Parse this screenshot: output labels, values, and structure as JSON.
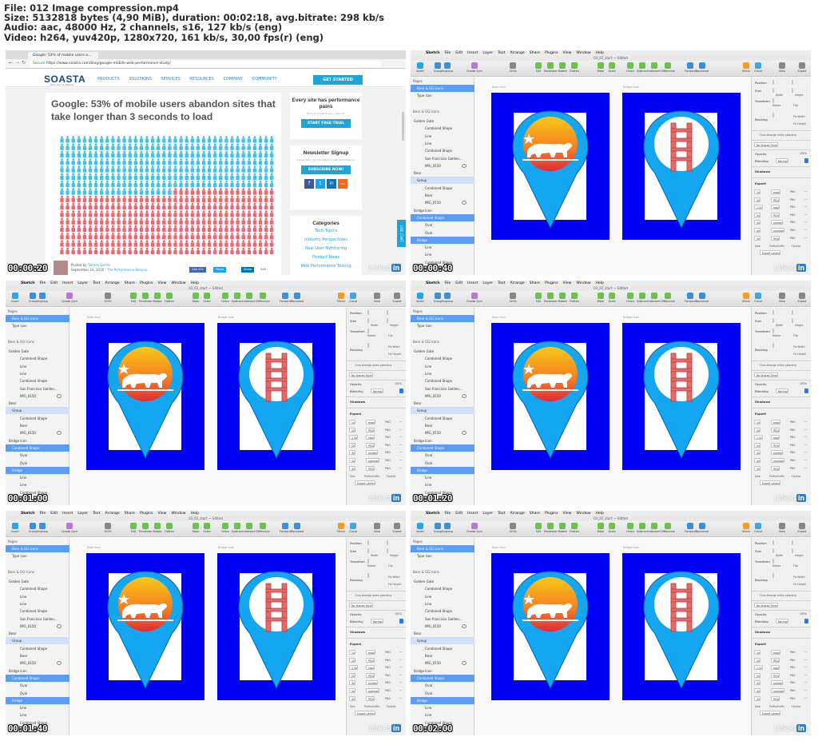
{
  "header": {
    "file": "File: 012 Image compression.mp4",
    "size": "Size: 5132818 bytes (4,90 MiB), duration: 00:02:18, avg.bitrate: 298 kb/s",
    "audio": "Audio: aac, 48000 Hz, 2 channels, s16, 127 kb/s (eng)",
    "video": "Video: h264, yuv420p, 1280x720, 161 kb/s, 30,00 fps(r) (eng)"
  },
  "timestamps": [
    "00:00:20",
    "00:00:40",
    "00:01:00",
    "00:01:20",
    "00:01:40",
    "00:02:00"
  ],
  "watermark": {
    "text": "Linked",
    "badge": "in"
  },
  "browser": {
    "tab_title": "Google: 53% of mobile users a...",
    "url_secure": "Secure",
    "url": "https://www.soasta.com/blog/google-mobile-web-performance-study/",
    "logo": "SOASTA",
    "logo_sub": "Now part of Akamai",
    "nav": [
      "PRODUCTS",
      "SOLUTIONS",
      "SERVICES",
      "RESOURCES",
      "COMPANY",
      "COMMUNITY"
    ],
    "cta": "GET STARTED",
    "title": "Google: 53% of mobile users abandon sites that take longer than 3 seconds to load",
    "posted_by": "Posted by",
    "author": "Tammy Everts",
    "date": "September 14, 2016 · ",
    "category_link": "The Performance Beacon",
    "share_buttons": [
      "Like 422",
      "Tweet",
      "Share",
      "448"
    ],
    "sidebar": {
      "perf_title": "Every site has performance pains",
      "perf_text": "Find yours before your users do.",
      "perf_button": "START FREE TRIAL",
      "news_title": "Newsletter Signup",
      "news_text": "Subscribe to get the latest on web performance.",
      "news_button": "SUBSCRIBE NOW!",
      "social": [
        "f",
        "t",
        "in",
        "rss"
      ],
      "cat_title": "Categories",
      "categories": [
        "Tech Topics",
        "Industry Perspectives",
        "Real User Monitoring",
        "Product News",
        "Web Performance Testing"
      ]
    },
    "live_chat": "LIVE CHAT",
    "colors": {
      "blue_people": "#41c3e8",
      "red_people": "#f06670",
      "accent": "#1ba5d8"
    }
  },
  "sketch": {
    "menu": [
      "Sketch",
      "File",
      "Edit",
      "Insert",
      "Layer",
      "Text",
      "Arrange",
      "Share",
      "Plugins",
      "View",
      "Window",
      "Help"
    ],
    "doc_title": "03_02_start — Edited",
    "toolbar": [
      "Insert",
      "Group",
      "Ungroup",
      "Create Symbol",
      "100%",
      "Edit",
      "Transform",
      "Rotate",
      "Flatten",
      "Mask",
      "Scale",
      "Union",
      "Subtract",
      "Intersect",
      "Difference",
      "Forward",
      "Backward",
      "Mirror",
      "Cloud",
      "View",
      "Export"
    ],
    "pages_label": "Pages",
    "pages": [
      "Bear & GG Icons",
      "Type icon"
    ],
    "layers": [
      {
        "label": "Bear & GG Icons",
        "kind": "sec"
      },
      {
        "label": "Golden Gate",
        "kind": "group"
      },
      {
        "label": "Combined Shape",
        "kind": "item"
      },
      {
        "label": "Line",
        "kind": "item"
      },
      {
        "label": "Line",
        "kind": "item"
      },
      {
        "label": "Combined Shape",
        "kind": "item"
      },
      {
        "label": "San Francisco Golden...",
        "kind": "item"
      },
      {
        "label": "IMG_0150",
        "kind": "item"
      },
      {
        "label": "Bear",
        "kind": "group"
      },
      {
        "label": "Group",
        "kind": "hl"
      },
      {
        "label": "Combined Shape",
        "kind": "item"
      },
      {
        "label": "Bear",
        "kind": "item"
      },
      {
        "label": "IMG_0150",
        "kind": "item"
      },
      {
        "label": "Bridge Icon",
        "kind": "group"
      },
      {
        "label": "Combined Shape",
        "kind": "sel"
      },
      {
        "label": "Oval",
        "kind": "item"
      },
      {
        "label": "Oval",
        "kind": "item"
      },
      {
        "label": "Bridge",
        "kind": "sel"
      },
      {
        "label": "Line",
        "kind": "item"
      },
      {
        "label": "Line",
        "kind": "item"
      },
      {
        "label": "Combined Shape",
        "kind": "item"
      }
    ],
    "artboards": [
      "Bear Icon",
      "Bridge Icon"
    ],
    "inspector": {
      "position": "Position",
      "size": "Size",
      "width": "Width",
      "height": "Height",
      "transform": "Transform",
      "rotate": "Rotate",
      "flip": "Flip",
      "resizing": "Resizing",
      "fix_width": "Fix Width",
      "fix_height": "Fix Height",
      "click_through": "Click-through when selecting",
      "shared_style": "No Shared Style",
      "opacity": "Opacity",
      "opacity_value": "100%",
      "blending": "Blending",
      "blending_value": "Normal",
      "shadows": "Shadows",
      "export": "Export",
      "export_rows": [
        {
          "size": "1x",
          "suffix": "mdpi",
          "format": "PNG"
        },
        {
          "size": "2x",
          "suffix": "@2x",
          "format": "PNG"
        },
        {
          "size": "1.5x",
          "suffix": "hdpi",
          "format": "PNG"
        },
        {
          "size": "2x",
          "suffix": "@2x",
          "format": "PNG"
        },
        {
          "size": "3x",
          "suffix": "xxhdpi",
          "format": "PNG"
        },
        {
          "size": "4x",
          "suffix": "xxxhdpi",
          "format": "PNG"
        },
        {
          "size": "3x",
          "suffix": "@3x",
          "format": "PNG"
        }
      ],
      "export_footer": [
        "Size",
        "Prefix/Suffix",
        "Format"
      ],
      "export_button": "Export Layers"
    },
    "colors": {
      "artboard": "#0000f5",
      "pin": "#14a6f0",
      "selection": "#5e9bf2"
    }
  }
}
